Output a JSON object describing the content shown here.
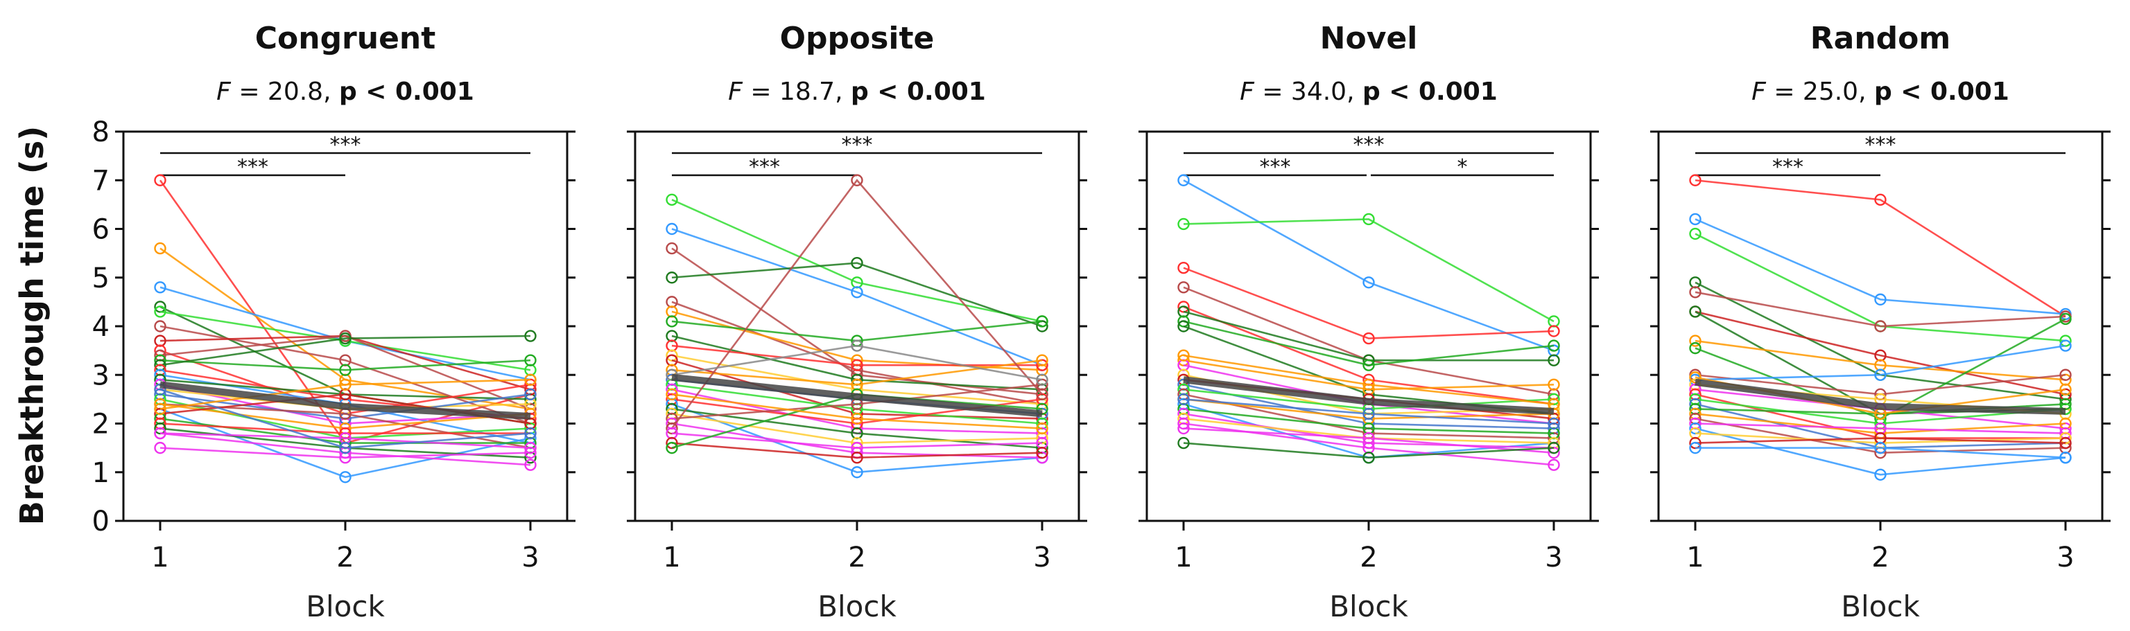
{
  "figure": {
    "ylabel": "Breakthrough time (s)",
    "xlabel": "Block"
  },
  "colors": {
    "individual": [
      "#ff3030",
      "#3399ff",
      "#33dd33",
      "#ff9900",
      "#b84a4a",
      "#1f7a1f",
      "#ee33ee",
      "#ffcc33",
      "#22aa22",
      "#cc2222",
      "#4477cc",
      "#888888"
    ],
    "mean_line": "#444444"
  },
  "chart_data": [
    {
      "type": "line",
      "title": "Congruent",
      "stat": {
        "f_label": "F",
        "f_text": " = 20.8, ",
        "p_text": "p < 0.001"
      },
      "x": [
        1,
        2,
        3
      ],
      "xticks": [
        "1",
        "2",
        "3"
      ],
      "yticks": [
        "0",
        "1",
        "2",
        "3",
        "4",
        "5",
        "6",
        "7",
        "8"
      ],
      "ylim": [
        0,
        8
      ],
      "significance": [
        {
          "from": 1,
          "to": 2,
          "label": "***",
          "row": 2
        },
        {
          "from": 1,
          "to": 3,
          "label": "***",
          "row": 1
        }
      ],
      "series": [
        {
          "values": [
            7.0,
            1.6,
            2.6
          ],
          "color": "#ff3030"
        },
        {
          "values": [
            5.6,
            2.9,
            2.3
          ],
          "color": "#ff9900"
        },
        {
          "values": [
            4.8,
            3.7,
            2.9
          ],
          "color": "#3399ff"
        },
        {
          "values": [
            4.4,
            2.6,
            2.5
          ],
          "color": "#1f7a1f"
        },
        {
          "values": [
            4.3,
            3.7,
            3.1
          ],
          "color": "#33dd33"
        },
        {
          "values": [
            4.0,
            3.3,
            2.0
          ],
          "color": "#b84a4a"
        },
        {
          "values": [
            3.7,
            3.8,
            2.7
          ],
          "color": "#cc2222"
        },
        {
          "values": [
            3.5,
            2.2,
            2.8
          ],
          "color": "#ff3030"
        },
        {
          "values": [
            3.4,
            3.8,
            2.3
          ],
          "color": "#b84a4a"
        },
        {
          "values": [
            3.3,
            3.1,
            3.3
          ],
          "color": "#22aa22"
        },
        {
          "values": [
            3.2,
            3.75,
            3.8
          ],
          "color": "#1f7a1f"
        },
        {
          "values": [
            3.1,
            2.5,
            2.1
          ],
          "color": "#ff3030"
        },
        {
          "values": [
            3.0,
            2.4,
            1.6
          ],
          "color": "#3399ff"
        },
        {
          "values": [
            2.9,
            2.6,
            2.0
          ],
          "color": "#1f7a1f"
        },
        {
          "values": [
            2.8,
            2.0,
            2.2
          ],
          "color": "#ee33ee"
        },
        {
          "values": [
            2.7,
            2.3,
            2.4
          ],
          "color": "#ffcc33"
        },
        {
          "values": [
            2.6,
            2.1,
            2.6
          ],
          "color": "#4477cc"
        },
        {
          "values": [
            2.5,
            1.7,
            1.9
          ],
          "color": "#33dd33"
        },
        {
          "values": [
            2.4,
            2.2,
            1.5
          ],
          "color": "#b84a4a"
        },
        {
          "values": [
            2.4,
            1.9,
            2.2
          ],
          "color": "#ff9900"
        },
        {
          "values": [
            2.3,
            0.9,
            1.7
          ],
          "color": "#3399ff"
        },
        {
          "values": [
            2.2,
            2.6,
            2.0
          ],
          "color": "#cc2222"
        },
        {
          "values": [
            2.1,
            1.6,
            1.6
          ],
          "color": "#22aa22"
        },
        {
          "values": [
            2.0,
            1.8,
            1.8
          ],
          "color": "#ff3030"
        },
        {
          "values": [
            1.9,
            1.5,
            1.3
          ],
          "color": "#1f7a1f"
        },
        {
          "values": [
            1.8,
            1.7,
            1.5
          ],
          "color": "#ee33ee"
        },
        {
          "values": [
            1.8,
            1.4,
            1.15
          ],
          "color": "#ee33ee"
        },
        {
          "values": [
            1.5,
            1.3,
            1.4
          ],
          "color": "#ee33ee"
        },
        {
          "values": [
            2.7,
            1.5,
            1.8
          ],
          "color": "#4477cc"
        },
        {
          "values": [
            2.3,
            2.8,
            2.9
          ],
          "color": "#ff9900"
        }
      ],
      "mean": [
        2.8,
        2.35,
        2.15
      ]
    },
    {
      "type": "line",
      "title": "Opposite",
      "stat": {
        "f_label": "F",
        "f_text": " = 18.7, ",
        "p_text": "p < 0.001"
      },
      "x": [
        1,
        2,
        3
      ],
      "xticks": [
        "1",
        "2",
        "3"
      ],
      "yticks": [
        "0",
        "1",
        "2",
        "3",
        "4",
        "5",
        "6",
        "7",
        "8"
      ],
      "ylim": [
        0,
        8
      ],
      "significance": [
        {
          "from": 1,
          "to": 2,
          "label": "***",
          "row": 2
        },
        {
          "from": 1,
          "to": 3,
          "label": "***",
          "row": 1
        }
      ],
      "series": [
        {
          "values": [
            6.6,
            4.9,
            4.1
          ],
          "color": "#33dd33"
        },
        {
          "values": [
            6.0,
            4.7,
            3.2
          ],
          "color": "#3399ff"
        },
        {
          "values": [
            5.6,
            3.0,
            2.6
          ],
          "color": "#b84a4a"
        },
        {
          "values": [
            5.0,
            5.3,
            4.0
          ],
          "color": "#1f7a1f"
        },
        {
          "values": [
            4.5,
            3.1,
            2.4
          ],
          "color": "#b84a4a"
        },
        {
          "values": [
            4.3,
            3.3,
            3.1
          ],
          "color": "#ff9900"
        },
        {
          "values": [
            4.1,
            3.7,
            4.1
          ],
          "color": "#22aa22"
        },
        {
          "values": [
            3.8,
            2.9,
            2.7
          ],
          "color": "#1f7a1f"
        },
        {
          "values": [
            3.6,
            3.2,
            3.2
          ],
          "color": "#ff3030"
        },
        {
          "values": [
            3.4,
            2.7,
            2.4
          ],
          "color": "#ffcc33"
        },
        {
          "values": [
            3.3,
            2.2,
            2.1
          ],
          "color": "#cc2222"
        },
        {
          "values": [
            3.1,
            2.8,
            3.3
          ],
          "color": "#ff9900"
        },
        {
          "values": [
            2.9,
            2.5,
            2.2
          ],
          "color": "#4477cc"
        },
        {
          "values": [
            2.8,
            2.3,
            2.0
          ],
          "color": "#33dd33"
        },
        {
          "values": [
            2.7,
            1.9,
            1.8
          ],
          "color": "#ee33ee"
        },
        {
          "values": [
            2.5,
            2.0,
            2.5
          ],
          "color": "#ff3030"
        },
        {
          "values": [
            2.4,
            1.0,
            1.3
          ],
          "color": "#3399ff"
        },
        {
          "values": [
            2.3,
            1.8,
            1.5
          ],
          "color": "#1f7a1f"
        },
        {
          "values": [
            2.2,
            1.6,
            1.7
          ],
          "color": "#ffcc33"
        },
        {
          "values": [
            2.1,
            2.4,
            2.8
          ],
          "color": "#b84a4a"
        },
        {
          "values": [
            2.0,
            1.4,
            1.3
          ],
          "color": "#ee33ee"
        },
        {
          "values": [
            1.9,
            7.0,
            2.6
          ],
          "color": "#b84a4a"
        },
        {
          "values": [
            1.8,
            1.5,
            1.6
          ],
          "color": "#ee33ee"
        },
        {
          "values": [
            1.6,
            1.3,
            1.4
          ],
          "color": "#cc2222"
        },
        {
          "values": [
            1.5,
            2.6,
            2.3
          ],
          "color": "#22aa22"
        },
        {
          "values": [
            2.6,
            2.1,
            1.9
          ],
          "color": "#ff9900"
        },
        {
          "values": [
            3.0,
            3.6,
            2.9
          ],
          "color": "#888888"
        }
      ],
      "mean": [
        2.95,
        2.55,
        2.2
      ]
    },
    {
      "type": "line",
      "title": "Novel",
      "stat": {
        "f_label": "F",
        "f_text": " = 34.0, ",
        "p_text": "p  < 0.001"
      },
      "x": [
        1,
        2,
        3
      ],
      "xticks": [
        "1",
        "2",
        "3"
      ],
      "yticks": [
        "0",
        "1",
        "2",
        "3",
        "4",
        "5",
        "6",
        "7",
        "8"
      ],
      "ylim": [
        0,
        8
      ],
      "significance": [
        {
          "from": 1,
          "to": 2,
          "label": "***",
          "row": 2
        },
        {
          "from": 2,
          "to": 3,
          "label": "*",
          "row": 2
        },
        {
          "from": 1,
          "to": 3,
          "label": "***",
          "row": 1
        }
      ],
      "series": [
        {
          "values": [
            7.0,
            4.9,
            3.5
          ],
          "color": "#3399ff"
        },
        {
          "values": [
            6.1,
            6.2,
            4.1
          ],
          "color": "#33dd33"
        },
        {
          "values": [
            5.2,
            3.75,
            3.9
          ],
          "color": "#ff3030"
        },
        {
          "values": [
            4.8,
            3.3,
            2.6
          ],
          "color": "#b84a4a"
        },
        {
          "values": [
            4.4,
            2.9,
            2.4
          ],
          "color": "#ff3030"
        },
        {
          "values": [
            4.3,
            3.3,
            3.3
          ],
          "color": "#1f7a1f"
        },
        {
          "values": [
            4.1,
            3.2,
            3.6
          ],
          "color": "#22aa22"
        },
        {
          "values": [
            4.0,
            2.6,
            2.2
          ],
          "color": "#1f7a1f"
        },
        {
          "values": [
            3.3,
            2.7,
            2.8
          ],
          "color": "#ff9900"
        },
        {
          "values": [
            3.2,
            2.4,
            2.0
          ],
          "color": "#ee33ee"
        },
        {
          "values": [
            3.0,
            2.2,
            2.3
          ],
          "color": "#ffcc33"
        },
        {
          "values": [
            2.9,
            2.5,
            2.1
          ],
          "color": "#cc2222"
        },
        {
          "values": [
            2.8,
            2.0,
            1.9
          ],
          "color": "#4477cc"
        },
        {
          "values": [
            2.7,
            2.3,
            2.5
          ],
          "color": "#33dd33"
        },
        {
          "values": [
            2.6,
            1.8,
            1.7
          ],
          "color": "#b84a4a"
        },
        {
          "values": [
            2.5,
            2.1,
            2.2
          ],
          "color": "#ff9900"
        },
        {
          "values": [
            2.4,
            1.3,
            1.6
          ],
          "color": "#3399ff"
        },
        {
          "values": [
            2.3,
            1.9,
            1.8
          ],
          "color": "#22aa22"
        },
        {
          "values": [
            2.2,
            1.6,
            1.5
          ],
          "color": "#ee33ee"
        },
        {
          "values": [
            2.1,
            1.7,
            1.6
          ],
          "color": "#ffcc33"
        },
        {
          "values": [
            2.0,
            1.5,
            1.15
          ],
          "color": "#ee33ee"
        },
        {
          "values": [
            1.9,
            1.7,
            1.4
          ],
          "color": "#ee33ee"
        },
        {
          "values": [
            1.6,
            1.3,
            1.5
          ],
          "color": "#1f7a1f"
        },
        {
          "values": [
            3.4,
            2.8,
            2.4
          ],
          "color": "#ff9900"
        },
        {
          "values": [
            2.5,
            2.2,
            2.0
          ],
          "color": "#4477cc"
        }
      ],
      "mean": [
        2.9,
        2.45,
        2.25
      ]
    },
    {
      "type": "line",
      "title": "Random",
      "stat": {
        "f_label": "F",
        "f_text": " = 25.0, ",
        "p_text": "p < 0.001"
      },
      "x": [
        1,
        2,
        3
      ],
      "xticks": [
        "1",
        "2",
        "3"
      ],
      "yticks": [
        "0",
        "1",
        "2",
        "3",
        "4",
        "5",
        "6",
        "7",
        "8"
      ],
      "ylim": [
        0,
        8
      ],
      "significance": [
        {
          "from": 1,
          "to": 2,
          "label": "***",
          "row": 2
        },
        {
          "from": 1,
          "to": 3,
          "label": "***",
          "row": 1
        }
      ],
      "series": [
        {
          "values": [
            7.0,
            6.6,
            4.2
          ],
          "color": "#ff3030"
        },
        {
          "values": [
            6.2,
            4.55,
            4.25
          ],
          "color": "#3399ff"
        },
        {
          "values": [
            5.9,
            4.0,
            3.7
          ],
          "color": "#33dd33"
        },
        {
          "values": [
            4.9,
            3.0,
            2.5
          ],
          "color": "#1f7a1f"
        },
        {
          "values": [
            4.7,
            4.0,
            4.2
          ],
          "color": "#b84a4a"
        },
        {
          "values": [
            4.3,
            3.4,
            2.6
          ],
          "color": "#cc2222"
        },
        {
          "values": [
            4.3,
            2.2,
            2.3
          ],
          "color": "#1f7a1f"
        },
        {
          "values": [
            3.7,
            3.2,
            2.9
          ],
          "color": "#ff9900"
        },
        {
          "values": [
            3.55,
            2.1,
            4.15
          ],
          "color": "#22aa22"
        },
        {
          "values": [
            3.0,
            2.6,
            3.0
          ],
          "color": "#b84a4a"
        },
        {
          "values": [
            2.9,
            3.0,
            3.6
          ],
          "color": "#3399ff"
        },
        {
          "values": [
            2.8,
            2.5,
            2.2
          ],
          "color": "#ffcc33"
        },
        {
          "values": [
            2.7,
            2.3,
            1.9
          ],
          "color": "#ee33ee"
        },
        {
          "values": [
            2.6,
            1.7,
            1.7
          ],
          "color": "#ff3030"
        },
        {
          "values": [
            2.5,
            2.0,
            2.3
          ],
          "color": "#33dd33"
        },
        {
          "values": [
            2.4,
            1.5,
            1.6
          ],
          "color": "#4477cc"
        },
        {
          "values": [
            2.3,
            2.2,
            2.4
          ],
          "color": "#22aa22"
        },
        {
          "values": [
            2.2,
            1.8,
            2.0
          ],
          "color": "#ff9900"
        },
        {
          "values": [
            2.1,
            1.4,
            1.5
          ],
          "color": "#b84a4a"
        },
        {
          "values": [
            2.0,
            1.9,
            1.8
          ],
          "color": "#ee33ee"
        },
        {
          "values": [
            1.9,
            0.95,
            1.3
          ],
          "color": "#3399ff"
        },
        {
          "values": [
            1.8,
            1.6,
            1.7
          ],
          "color": "#ffcc33"
        },
        {
          "values": [
            1.6,
            1.7,
            1.6
          ],
          "color": "#cc2222"
        },
        {
          "values": [
            1.5,
            1.5,
            1.3
          ],
          "color": "#3399ff"
        },
        {
          "values": [
            2.95,
            2.2,
            2.7
          ],
          "color": "#ff9900"
        }
      ],
      "mean": [
        2.85,
        2.35,
        2.25
      ]
    }
  ]
}
